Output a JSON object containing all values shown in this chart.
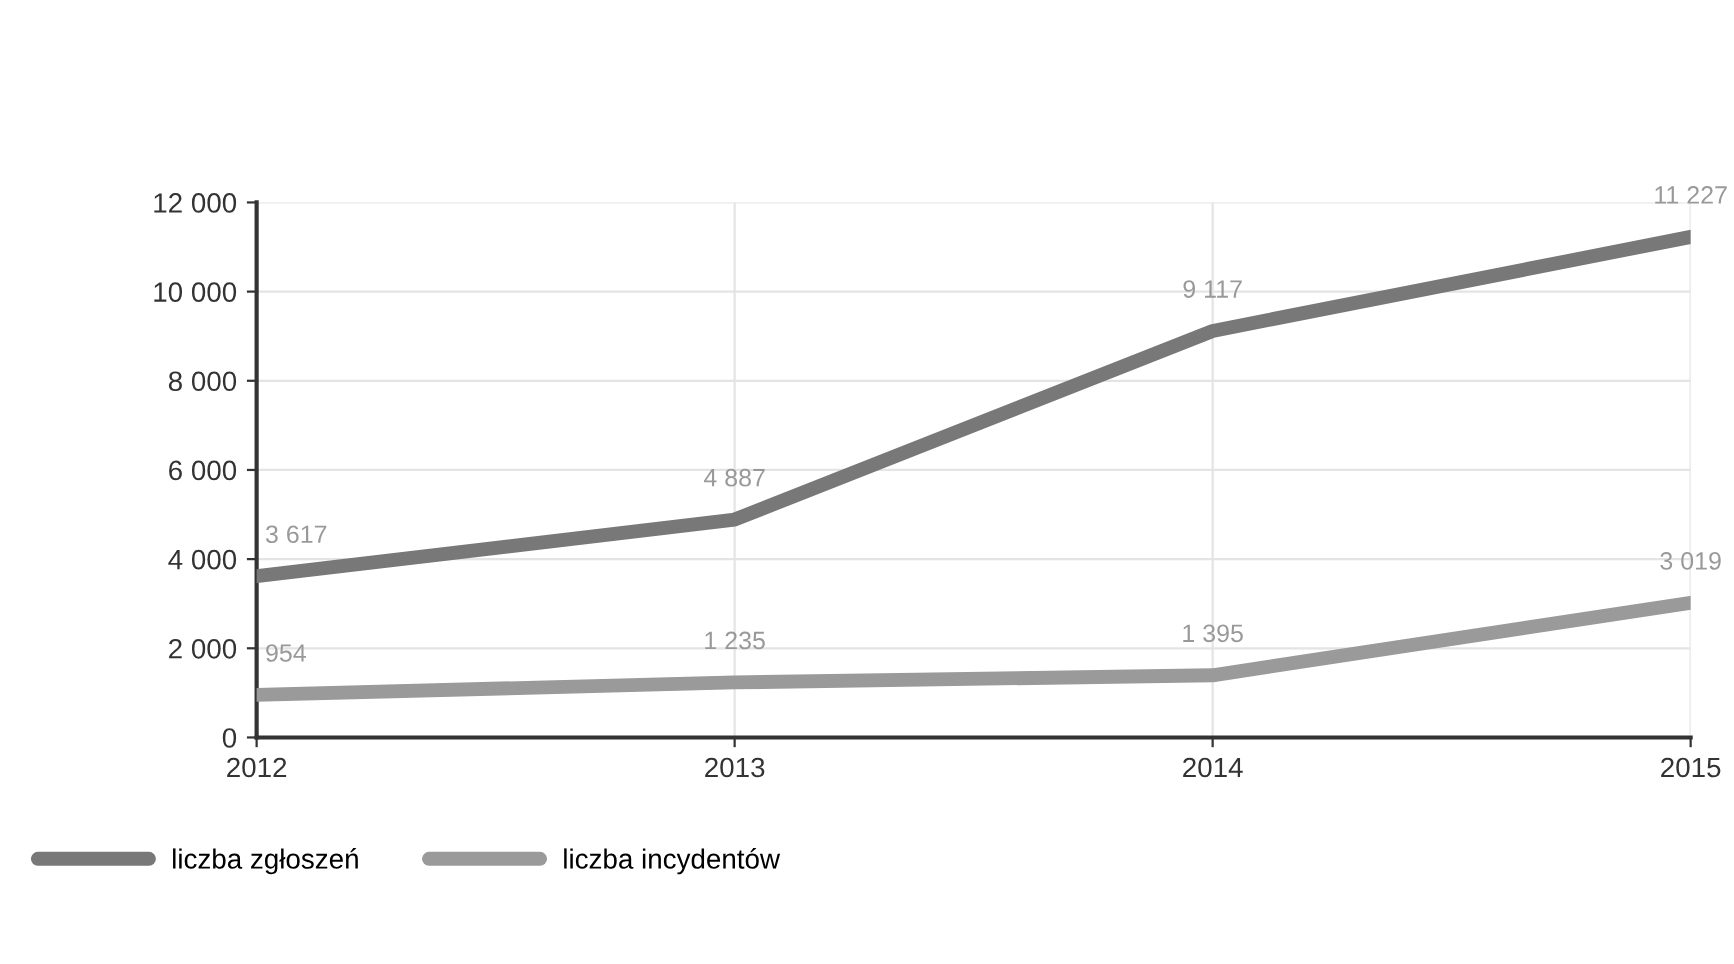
{
  "chart_data": {
    "type": "line",
    "categories": [
      "2012",
      "2013",
      "2014",
      "2015"
    ],
    "series": [
      {
        "name": "liczba zgłoszeń",
        "color": "#787878",
        "values": [
          3617,
          4887,
          9117,
          11227
        ],
        "value_labels": [
          "3 617",
          "4 887",
          "9 117",
          "11 227"
        ]
      },
      {
        "name": "liczba incydentów",
        "color": "#9a9a9a",
        "values": [
          954,
          1235,
          1395,
          3019
        ],
        "value_labels": [
          "954",
          "1 235",
          "1 395",
          "3 019"
        ]
      }
    ],
    "ylim": [
      0,
      12000
    ],
    "yticks": [
      0,
      {
        "value": 2000,
        "label": "2 000"
      },
      {
        "value": 4000,
        "label": "4 000"
      },
      {
        "value": 6000,
        "label": "6 000"
      },
      {
        "value": 8000,
        "label": "8 000"
      },
      {
        "value": 10000,
        "label": "10 000"
      },
      {
        "value": 12000,
        "label": "12 000"
      }
    ],
    "grid": true,
    "legend": "bottom left",
    "marker": "none",
    "line_style": "solid"
  }
}
